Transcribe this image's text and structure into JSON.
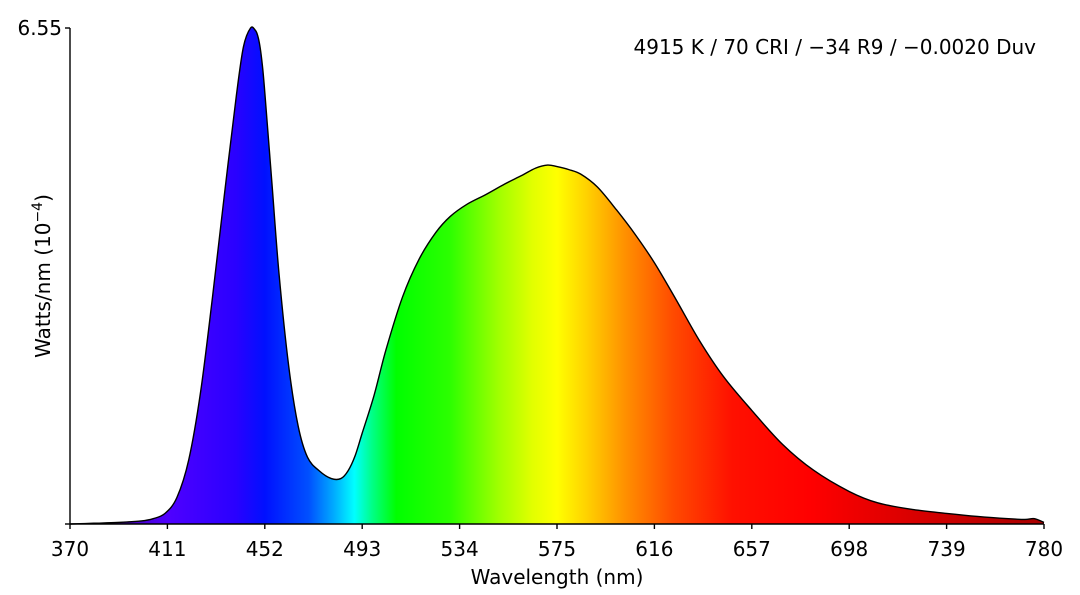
{
  "chart_data": {
    "type": "area",
    "annotation": "4915 K / 70 CRI / −34 R9 / −0.0020 Duv",
    "xlabel": "Wavelength (nm)",
    "ylabel_main": "Watts/nm (10",
    "ylabel_sup": "−4",
    "ylabel_close": ")",
    "xlim": [
      370,
      780
    ],
    "ylim": [
      0,
      6.55
    ],
    "x_ticks": [
      370,
      411,
      452,
      493,
      534,
      575,
      616,
      657,
      698,
      739,
      780
    ],
    "y_ticks": [
      6.55
    ],
    "grid": false,
    "fill": "visible-spectrum-gradient",
    "x": [
      370,
      380,
      390,
      400,
      405,
      410,
      415,
      420,
      425,
      430,
      435,
      440,
      443,
      446,
      448,
      449,
      450,
      451,
      452,
      455,
      458,
      462,
      466,
      470,
      475,
      480,
      484,
      487,
      490,
      493,
      498,
      503,
      510,
      517,
      524,
      530,
      537,
      545,
      553,
      560,
      566,
      571,
      575,
      580,
      585,
      592,
      600,
      608,
      616,
      625,
      635,
      645,
      657,
      670,
      683,
      698,
      710,
      725,
      739,
      752,
      765,
      772,
      776,
      780
    ],
    "y": [
      0.0,
      0.01,
      0.02,
      0.04,
      0.07,
      0.14,
      0.35,
      0.85,
      1.75,
      3.0,
      4.35,
      5.65,
      6.3,
      6.55,
      6.52,
      6.45,
      6.3,
      6.05,
      5.7,
      4.5,
      3.3,
      2.1,
      1.3,
      0.88,
      0.7,
      0.6,
      0.6,
      0.7,
      0.9,
      1.2,
      1.7,
      2.3,
      3.0,
      3.5,
      3.85,
      4.06,
      4.22,
      4.35,
      4.49,
      4.6,
      4.7,
      4.74,
      4.72,
      4.68,
      4.62,
      4.45,
      4.15,
      3.82,
      3.45,
      2.97,
      2.42,
      1.95,
      1.5,
      1.05,
      0.71,
      0.43,
      0.28,
      0.19,
      0.14,
      0.1,
      0.07,
      0.06,
      0.07,
      0.02
    ]
  }
}
